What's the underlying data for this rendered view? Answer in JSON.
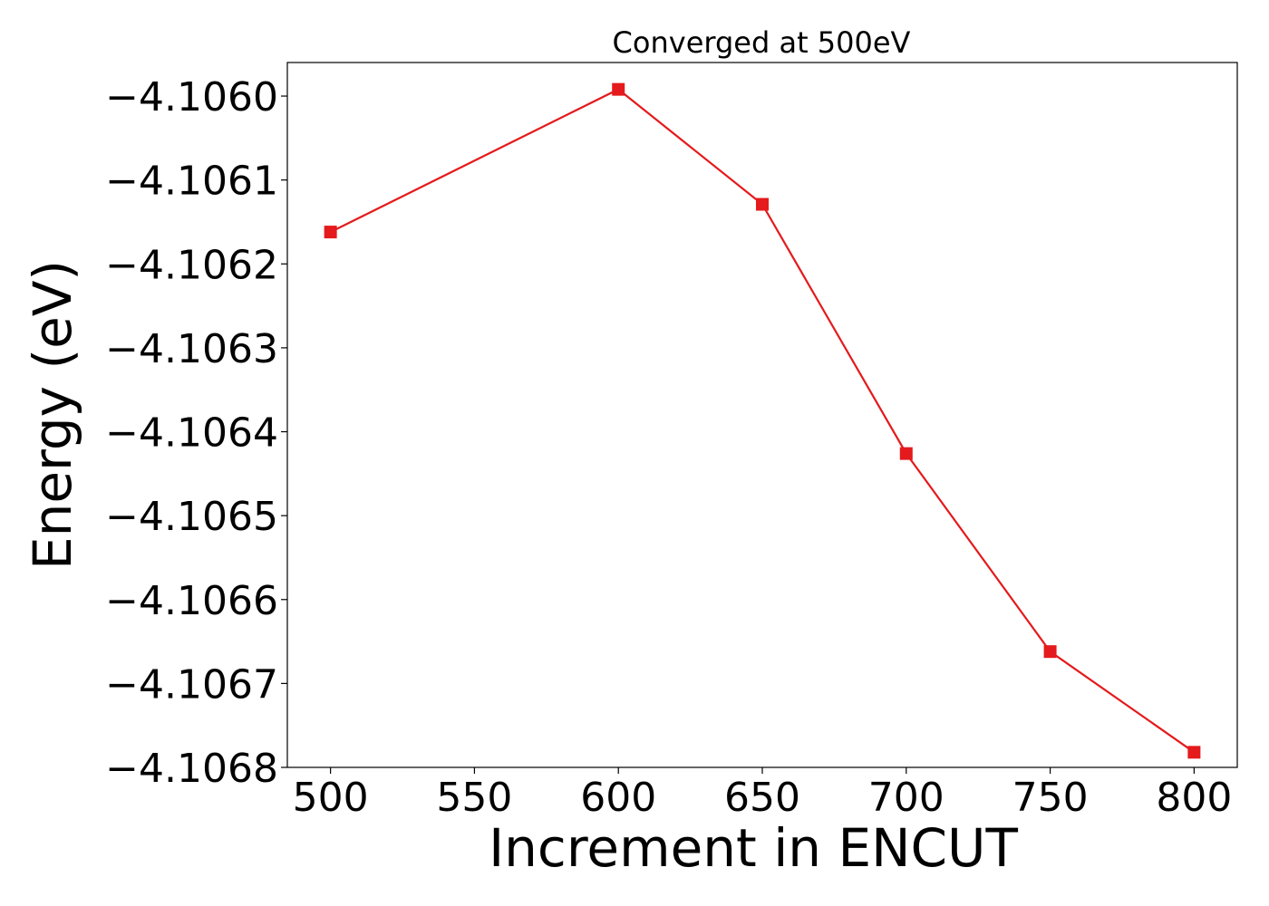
{
  "chart_data": {
    "type": "line",
    "title": "Converged at 500eV",
    "xlabel": "Increment in ENCUT",
    "ylabel": "Energy (eV)",
    "x": [
      500,
      600,
      650,
      700,
      750,
      800
    ],
    "series": [
      {
        "values": [
          -4.106162,
          -4.105992,
          -4.106129,
          -4.106426,
          -4.106662,
          -4.106782
        ],
        "color": "#e41a1c",
        "marker": "square"
      }
    ],
    "xlim": [
      485,
      815
    ],
    "ylim": [
      -4.1068,
      -4.10596
    ],
    "x_ticks": [
      500,
      550,
      600,
      650,
      700,
      750,
      800
    ],
    "x_tick_labels": [
      "500",
      "550",
      "600",
      "650",
      "700",
      "750",
      "800"
    ],
    "y_ticks": [
      -4.1068,
      -4.1067,
      -4.1066,
      -4.1065,
      -4.1064,
      -4.1063,
      -4.1062,
      -4.1061,
      -4.106
    ],
    "y_tick_labels": [
      "−4.1068",
      "−4.1067",
      "−4.1066",
      "−4.1065",
      "−4.1064",
      "−4.1063",
      "−4.1062",
      "−4.1061",
      "−4.1060"
    ],
    "grid": false,
    "legend": "none"
  }
}
